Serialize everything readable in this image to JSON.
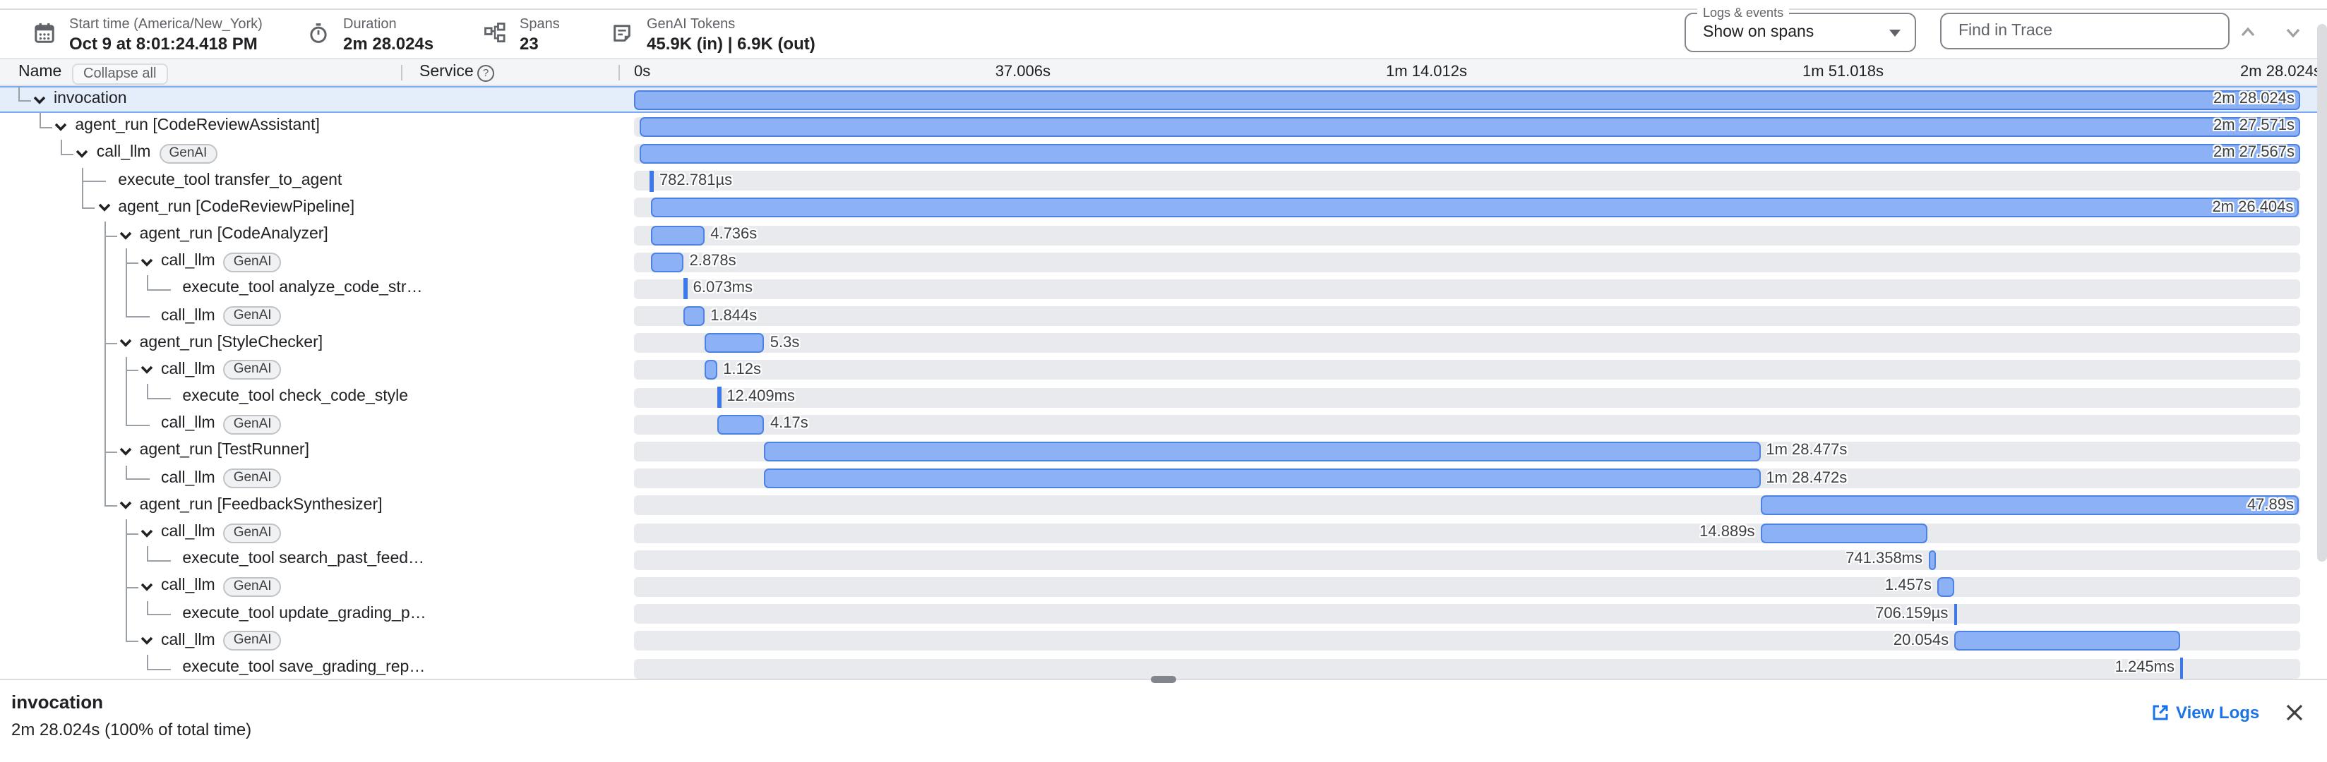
{
  "header": {
    "start_time": {
      "label": "Start time (America/New_York)",
      "value": "Oct 9 at 8:01:24.418 PM"
    },
    "duration": {
      "label": "Duration",
      "value": "2m 28.024s"
    },
    "spans_count": {
      "label": "Spans",
      "value": "23"
    },
    "tokens": {
      "label": "GenAI Tokens",
      "value": "45.9K (in) | 6.9K (out)"
    },
    "logs_events": {
      "label": "Logs & events",
      "value": "Show on spans"
    },
    "find_placeholder": "Find in Trace"
  },
  "columns": {
    "name": "Name",
    "collapse_all": "Collapse all",
    "service": "Service"
  },
  "icons": {
    "help": "?"
  },
  "timeline": {
    "total_s": 148.024,
    "ticks": [
      {
        "label": "0s",
        "t": 0,
        "align": "left"
      },
      {
        "label": "37.006s",
        "t": 37.006,
        "align": "right"
      },
      {
        "label": "1m 14.012s",
        "t": 74.012,
        "align": "right"
      },
      {
        "label": "1m 51.018s",
        "t": 111.018,
        "align": "right"
      },
      {
        "label": "2m 28.024s",
        "t": 148.024,
        "align": "edge"
      }
    ]
  },
  "spans": [
    {
      "name": "invocation",
      "depth": 0,
      "expandable": true,
      "selected": true,
      "start_s": 0,
      "dur_s": 148.024,
      "dur_label": "2m 28.024s",
      "label_pos": "inside"
    },
    {
      "name": "agent_run [CodeReviewAssistant]",
      "depth": 1,
      "expandable": true,
      "selected": false,
      "start_s": 0.453,
      "dur_s": 147.571,
      "dur_label": "2m 27.571s",
      "label_pos": "inside"
    },
    {
      "name": "call_llm",
      "chip": "GenAI",
      "depth": 2,
      "expandable": true,
      "selected": false,
      "start_s": 0.455,
      "dur_s": 147.567,
      "dur_label": "2m 27.567s",
      "label_pos": "inside"
    },
    {
      "name": "execute_tool transfer_to_agent",
      "depth": 3,
      "expandable": false,
      "selected": false,
      "start_s": 1.44,
      "dur_s": 0.000783,
      "dur_label": "782.781µs",
      "label_pos": "right"
    },
    {
      "name": "agent_run [CodeReviewPipeline]",
      "depth": 3,
      "expandable": true,
      "selected": false,
      "start_s": 1.52,
      "dur_s": 146.404,
      "dur_label": "2m 26.404s",
      "label_pos": "inside"
    },
    {
      "name": "agent_run [CodeAnalyzer]",
      "depth": 4,
      "expandable": true,
      "selected": false,
      "start_s": 1.55,
      "dur_s": 4.736,
      "dur_label": "4.736s",
      "label_pos": "right"
    },
    {
      "name": "call_llm",
      "chip": "GenAI",
      "depth": 5,
      "expandable": true,
      "selected": false,
      "start_s": 1.55,
      "dur_s": 2.878,
      "dur_label": "2.878s",
      "label_pos": "right"
    },
    {
      "name": "execute_tool analyze_code_str…",
      "depth": 6,
      "expandable": false,
      "selected": false,
      "start_s": 4.43,
      "dur_s": 0.006073,
      "dur_label": "6.073ms",
      "label_pos": "right"
    },
    {
      "name": "call_llm",
      "chip": "GenAI",
      "depth": 5,
      "expandable": false,
      "selected": false,
      "start_s": 4.44,
      "dur_s": 1.844,
      "dur_label": "1.844s",
      "label_pos": "right"
    },
    {
      "name": "agent_run [StyleChecker]",
      "depth": 4,
      "expandable": true,
      "selected": false,
      "start_s": 6.29,
      "dur_s": 5.3,
      "dur_label": "5.3s",
      "label_pos": "right"
    },
    {
      "name": "call_llm",
      "chip": "GenAI",
      "depth": 5,
      "expandable": true,
      "selected": false,
      "start_s": 6.29,
      "dur_s": 1.12,
      "dur_label": "1.12s",
      "label_pos": "right"
    },
    {
      "name": "execute_tool check_code_style",
      "depth": 6,
      "expandable": false,
      "selected": false,
      "start_s": 7.42,
      "dur_s": 0.012409,
      "dur_label": "12.409ms",
      "label_pos": "right"
    },
    {
      "name": "call_llm",
      "chip": "GenAI",
      "depth": 5,
      "expandable": false,
      "selected": false,
      "start_s": 7.43,
      "dur_s": 4.17,
      "dur_label": "4.17s",
      "label_pos": "right"
    },
    {
      "name": "agent_run [TestRunner]",
      "depth": 4,
      "expandable": true,
      "selected": false,
      "start_s": 11.59,
      "dur_s": 88.477,
      "dur_label": "1m 28.477s",
      "label_pos": "right"
    },
    {
      "name": "call_llm",
      "chip": "GenAI",
      "depth": 5,
      "expandable": false,
      "selected": false,
      "start_s": 11.59,
      "dur_s": 88.472,
      "dur_label": "1m 28.472s",
      "label_pos": "right"
    },
    {
      "name": "agent_run [FeedbackSynthesizer]",
      "depth": 4,
      "expandable": true,
      "selected": false,
      "start_s": 100.07,
      "dur_s": 47.89,
      "dur_label": "47.89s",
      "label_pos": "inside"
    },
    {
      "name": "call_llm",
      "chip": "GenAI",
      "depth": 5,
      "expandable": true,
      "selected": false,
      "start_s": 100.07,
      "dur_s": 14.889,
      "dur_label": "14.889s",
      "label_pos": "left"
    },
    {
      "name": "execute_tool search_past_feed…",
      "depth": 6,
      "expandable": false,
      "selected": false,
      "start_s": 114.97,
      "dur_s": 0.741358,
      "dur_label": "741.358ms",
      "label_pos": "left"
    },
    {
      "name": "call_llm",
      "chip": "GenAI",
      "depth": 5,
      "expandable": true,
      "selected": false,
      "start_s": 115.78,
      "dur_s": 1.457,
      "dur_label": "1.457s",
      "label_pos": "left"
    },
    {
      "name": "execute_tool update_grading_p…",
      "depth": 6,
      "expandable": false,
      "selected": false,
      "start_s": 117.25,
      "dur_s": 0.000706,
      "dur_label": "706.159µs",
      "label_pos": "left"
    },
    {
      "name": "call_llm",
      "chip": "GenAI",
      "depth": 5,
      "expandable": true,
      "selected": false,
      "start_s": 117.3,
      "dur_s": 20.054,
      "dur_label": "20.054s",
      "label_pos": "left"
    },
    {
      "name": "execute_tool save_grading_rep…",
      "depth": 6,
      "expandable": false,
      "selected": false,
      "start_s": 137.36,
      "dur_s": 0.001245,
      "dur_label": "1.245ms",
      "label_pos": "left"
    }
  ],
  "detail_panel": {
    "title": "invocation",
    "subtitle": "2m 28.024s  (100% of total time)",
    "view_logs": "View Logs"
  },
  "colors": {
    "accent": "#1a73e8",
    "bar_fill": "#8cb1f4",
    "bar_border": "#4d82e2",
    "selected_row": "#e4eefb",
    "track": "#e9eaed"
  }
}
